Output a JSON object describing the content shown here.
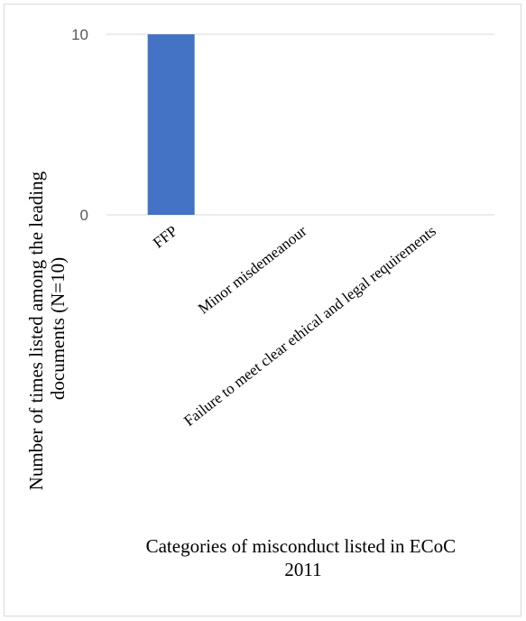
{
  "chart_data": {
    "type": "bar",
    "categories": [
      "FFP",
      "Minor misdemeanour",
      "Failure to meet clear ethical and legal requirements"
    ],
    "values": [
      10,
      0,
      0
    ],
    "ylim": [
      0,
      10
    ],
    "yticks": [
      0,
      10
    ],
    "grid": true,
    "bar_color": "#4472C4",
    "ylabel_lines": [
      "Number of times listed among the leading",
      "documents (N=10)"
    ],
    "xlabel_lines": [
      "Categories of misconduct listed in ECoC",
      "2011"
    ]
  }
}
